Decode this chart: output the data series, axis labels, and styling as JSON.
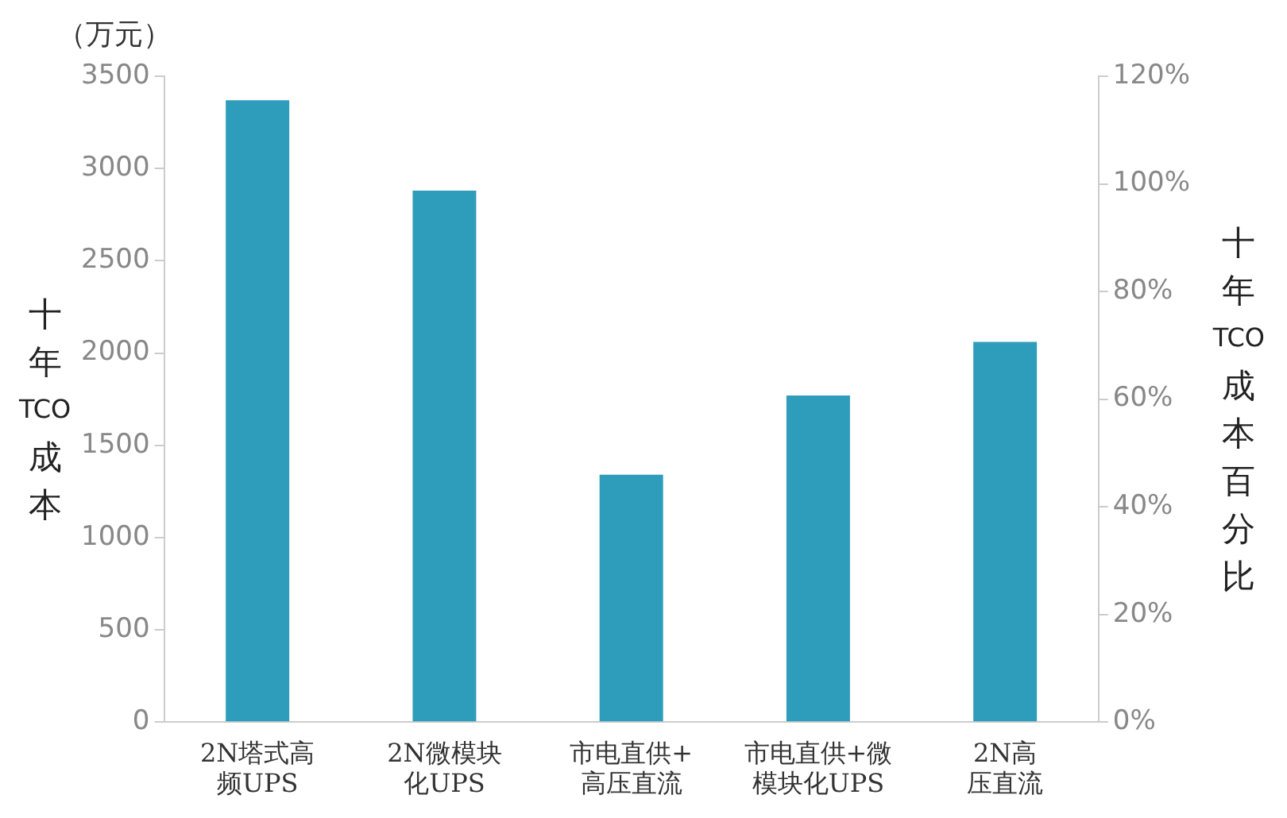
{
  "chart_data": {
    "type": "bar",
    "categories": [
      "2N塔式高频UPS",
      "2N微模块化UPS",
      "市电直供+高压直流",
      "市电直供+微模块化UPS",
      "2N高压直流"
    ],
    "values": [
      3370,
      2880,
      1340,
      1770,
      2060
    ],
    "color": "#2e9cbb",
    "ylabel": "十年 TCO 成本",
    "y2label": "十年TCO成本百分比",
    "annotations": [
      "（万元）"
    ],
    "ylim": [
      0,
      3500
    ],
    "yticks": [
      0,
      500,
      1000,
      1500,
      2000,
      2500,
      3000,
      3500
    ],
    "y2lim": [
      0,
      120
    ],
    "y2ticks": [
      {
        "value": 0,
        "label": "0%"
      },
      {
        "value": 20,
        "label": "20%"
      },
      {
        "value": 40,
        "label": "40%"
      },
      {
        "value": 60,
        "label": "60%"
      },
      {
        "value": 80,
        "label": "80%"
      },
      {
        "value": 100,
        "label": "100%"
      },
      {
        "value": 120,
        "label": "120%"
      }
    ]
  }
}
